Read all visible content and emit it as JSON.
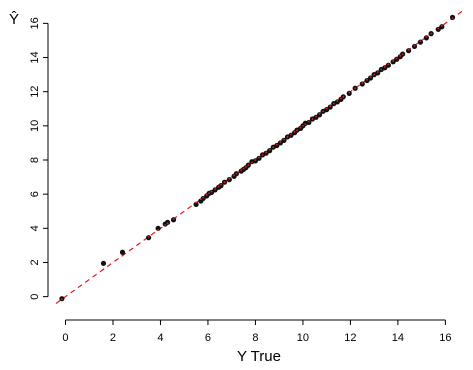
{
  "chart_data": {
    "type": "scatter",
    "title": "",
    "xlabel": "Y True",
    "ylabel": "Ŷ",
    "xlim": [
      -0.4,
      16.7
    ],
    "ylim": [
      -0.9,
      16.9
    ],
    "x_ticks": [
      0,
      2,
      4,
      6,
      8,
      10,
      12,
      14,
      16
    ],
    "y_ticks": [
      0,
      2,
      4,
      6,
      8,
      10,
      12,
      14,
      16
    ],
    "grid": false,
    "reference_line": {
      "slope": 1,
      "intercept": 0,
      "color": "#e41a1c",
      "style": "dashed"
    },
    "point_color": "#111111",
    "points": [
      [
        -0.15,
        -0.12
      ],
      [
        1.6,
        1.95
      ],
      [
        2.4,
        2.6
      ],
      [
        3.5,
        3.45
      ],
      [
        3.9,
        4.0
      ],
      [
        4.2,
        4.25
      ],
      [
        4.3,
        4.35
      ],
      [
        4.55,
        4.5
      ],
      [
        5.5,
        5.4
      ],
      [
        5.7,
        5.6
      ],
      [
        5.8,
        5.75
      ],
      [
        5.95,
        5.9
      ],
      [
        6.05,
        6.05
      ],
      [
        6.15,
        6.1
      ],
      [
        6.3,
        6.25
      ],
      [
        6.45,
        6.4
      ],
      [
        6.55,
        6.5
      ],
      [
        6.7,
        6.7
      ],
      [
        6.9,
        6.85
      ],
      [
        7.1,
        7.05
      ],
      [
        7.2,
        7.2
      ],
      [
        7.4,
        7.35
      ],
      [
        7.5,
        7.45
      ],
      [
        7.6,
        7.55
      ],
      [
        7.7,
        7.7
      ],
      [
        7.85,
        7.9
      ],
      [
        8.0,
        7.95
      ],
      [
        8.15,
        8.1
      ],
      [
        8.3,
        8.3
      ],
      [
        8.45,
        8.4
      ],
      [
        8.6,
        8.55
      ],
      [
        8.75,
        8.75
      ],
      [
        8.9,
        8.85
      ],
      [
        9.05,
        9.0
      ],
      [
        9.2,
        9.15
      ],
      [
        9.35,
        9.35
      ],
      [
        9.5,
        9.45
      ],
      [
        9.65,
        9.6
      ],
      [
        9.75,
        9.75
      ],
      [
        9.9,
        9.85
      ],
      [
        10.0,
        10.0
      ],
      [
        10.1,
        10.15
      ],
      [
        10.25,
        10.2
      ],
      [
        10.4,
        10.4
      ],
      [
        10.55,
        10.5
      ],
      [
        10.7,
        10.65
      ],
      [
        10.85,
        10.85
      ],
      [
        11.0,
        10.95
      ],
      [
        11.15,
        11.1
      ],
      [
        11.3,
        11.3
      ],
      [
        11.45,
        11.4
      ],
      [
        11.6,
        11.55
      ],
      [
        11.7,
        11.7
      ],
      [
        11.95,
        11.9
      ],
      [
        12.2,
        12.2
      ],
      [
        12.5,
        12.45
      ],
      [
        12.7,
        12.65
      ],
      [
        12.85,
        12.8
      ],
      [
        13.0,
        13.0
      ],
      [
        13.15,
        13.1
      ],
      [
        13.3,
        13.3
      ],
      [
        13.45,
        13.4
      ],
      [
        13.6,
        13.55
      ],
      [
        13.8,
        13.75
      ],
      [
        13.95,
        13.9
      ],
      [
        14.1,
        14.05
      ],
      [
        14.2,
        14.2
      ],
      [
        14.45,
        14.4
      ],
      [
        14.7,
        14.65
      ],
      [
        14.95,
        14.9
      ],
      [
        15.2,
        15.15
      ],
      [
        15.4,
        15.4
      ],
      [
        15.7,
        15.65
      ],
      [
        15.85,
        15.8
      ],
      [
        16.3,
        16.35
      ]
    ]
  }
}
